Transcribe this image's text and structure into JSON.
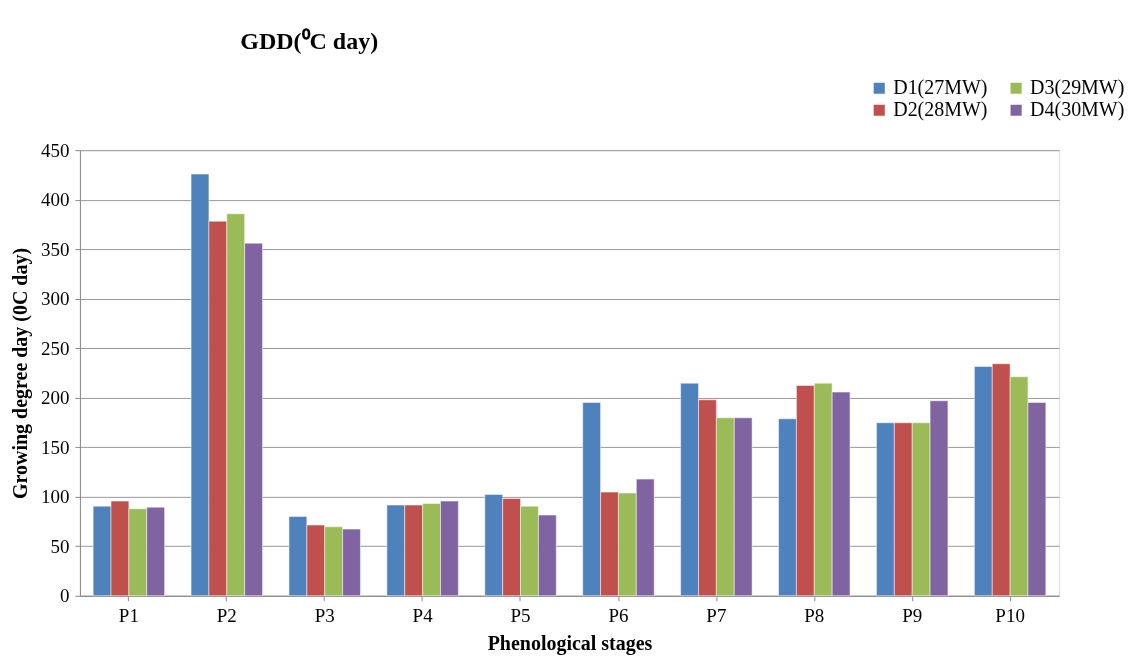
{
  "chart_data": {
    "type": "bar",
    "title": "GDD(⁰C day)",
    "xlabel": "Phenological stages",
    "ylabel": "Growing degree day (0C day)",
    "categories": [
      "P1",
      "P2",
      "P3",
      "P4",
      "P5",
      "P6",
      "P7",
      "P8",
      "P9",
      "P10"
    ],
    "series": [
      {
        "name": "D1(27MW)",
        "color": "#4f81bd",
        "values": [
          90.5,
          425.8,
          80.1,
          91.6,
          102.3,
          195.2,
          214.7,
          178.7,
          174.7,
          231.6
        ]
      },
      {
        "name": "D2(28MW)",
        "color": "#c0504d",
        "values": [
          95.6,
          378.3,
          71.4,
          91.6,
          98.3,
          104.7,
          197.9,
          212.4,
          174.7,
          234.3
        ]
      },
      {
        "name": "D3(29MW)",
        "color": "#9bbb59",
        "values": [
          87.9,
          385.7,
          69.7,
          93.2,
          90.5,
          103.7,
          179.7,
          214.7,
          174.7,
          221.1
        ]
      },
      {
        "name": "D4(30MW)",
        "color": "#8064a2",
        "values": [
          89.5,
          356.1,
          67.3,
          95.6,
          81.5,
          117.8,
          179.7,
          205.7,
          196.9,
          195.2
        ]
      }
    ],
    "ylim": [
      0,
      450
    ],
    "yticks": [
      0,
      50,
      100,
      150,
      200,
      250,
      300,
      350,
      400,
      450
    ],
    "grid": "y",
    "legend": "top right"
  }
}
